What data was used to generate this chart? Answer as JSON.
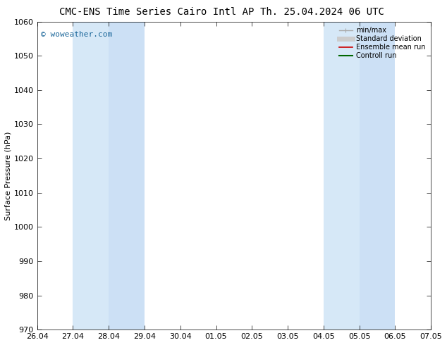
{
  "title_left": "CMC-ENS Time Series Cairo Intl AP",
  "title_right": "Th. 25.04.2024 06 UTC",
  "ylabel": "Surface Pressure (hPa)",
  "ylim": [
    970,
    1060
  ],
  "yticks": [
    970,
    980,
    990,
    1000,
    1010,
    1020,
    1030,
    1040,
    1050,
    1060
  ],
  "xlabels": [
    "26.04",
    "27.04",
    "28.04",
    "29.04",
    "30.04",
    "01.05",
    "02.05",
    "03.05",
    "04.05",
    "05.05",
    "06.05",
    "07.05"
  ],
  "x_values": [
    0,
    1,
    2,
    3,
    4,
    5,
    6,
    7,
    8,
    9,
    10,
    11
  ],
  "shade_bands": [
    {
      "xmin": 1,
      "xmax": 2,
      "color": "#d6e8f7"
    },
    {
      "xmin": 2,
      "xmax": 3,
      "color": "#cce0f5"
    },
    {
      "xmin": 8,
      "xmax": 9,
      "color": "#d6e8f7"
    },
    {
      "xmin": 9,
      "xmax": 10,
      "color": "#cce0f5"
    }
  ],
  "watermark": "© woweather.com",
  "watermark_color": "#1a6699",
  "legend_items": [
    {
      "label": "min/max",
      "color": "#aaaaaa",
      "lw": 1.0,
      "ls": "-",
      "type": "minmax"
    },
    {
      "label": "Standard deviation",
      "color": "#cccccc",
      "lw": 5,
      "ls": "-",
      "type": "band"
    },
    {
      "label": "Ensemble mean run",
      "color": "#cc0000",
      "lw": 1.2,
      "ls": "-",
      "type": "line"
    },
    {
      "label": "Controll run",
      "color": "#006600",
      "lw": 1.5,
      "ls": "-",
      "type": "line"
    }
  ],
  "bg_color": "#ffffff",
  "plot_bg_color": "#ffffff",
  "title_fontsize": 10,
  "ylabel_fontsize": 8,
  "tick_fontsize": 8
}
